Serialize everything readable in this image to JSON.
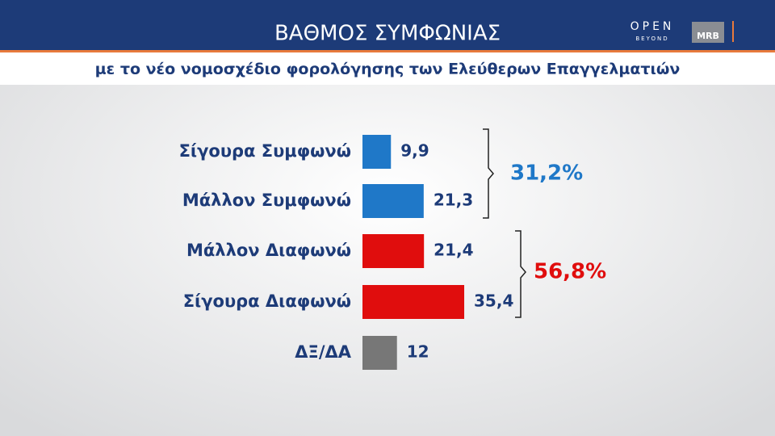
{
  "chart_data": {
    "type": "bar",
    "orientation": "horizontal",
    "title": "ΒΑΘΜΟΣ ΣΥΜΦΩΝΙΑΣ",
    "subtitle": "με το νέο νομοσχέδιο φορολόγησης των Ελεύθερων Επαγγελματιών",
    "categories": [
      "Σίγουρα Συμφωνώ",
      "Μάλλον Συμφωνώ",
      "Μάλλον Διαφωνώ",
      "Σίγουρα Διαφωνώ",
      "ΔΞ/ΔΑ"
    ],
    "values": [
      9.9,
      21.3,
      21.4,
      35.4,
      12
    ],
    "value_labels": [
      "9,9",
      "21,3",
      "21,4",
      "35,4",
      "12"
    ],
    "colors": [
      "#1f78c8",
      "#1f78c8",
      "#e00d0d",
      "#e00d0d",
      "#777777"
    ],
    "annotations": [
      {
        "label": "31,2%",
        "color": "#1f78c8"
      },
      {
        "label": "56,8%",
        "color": "#e00d0d"
      }
    ]
  },
  "logo": {
    "brand": "OPEN",
    "tagline": "BEYOND",
    "partner": "MRB"
  }
}
